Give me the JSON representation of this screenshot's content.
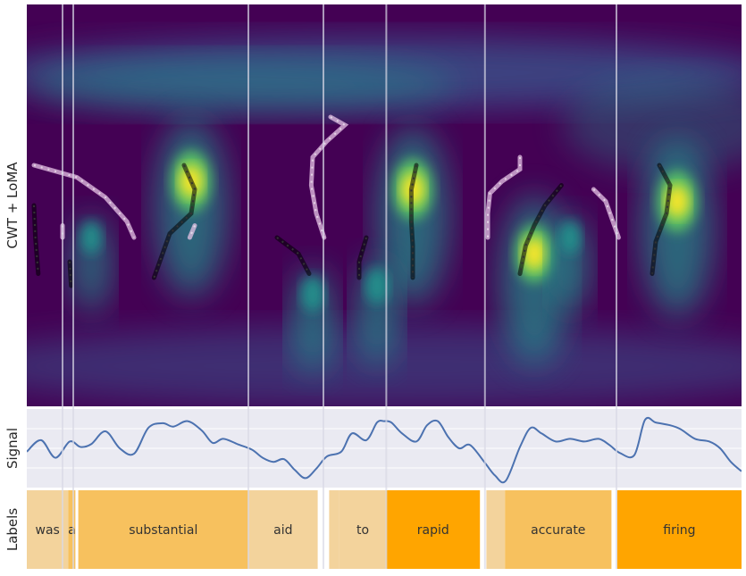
{
  "chart_data": [
    {
      "type": "heatmap",
      "panel": "wavelet",
      "ylabel": "CWT + LoMA",
      "colormap": "viridis",
      "colormap_stops": [
        "#440154",
        "#3b528b",
        "#21918c",
        "#5ec962",
        "#fde725"
      ],
      "grid": false,
      "blobs": [
        {
          "time": 0.23,
          "scale": 0.44,
          "intensity": 1.0
        },
        {
          "time": 0.54,
          "scale": 0.46,
          "intensity": 1.0
        },
        {
          "time": 0.71,
          "scale": 0.62,
          "intensity": 0.95
        },
        {
          "time": 0.91,
          "scale": 0.49,
          "intensity": 1.0
        },
        {
          "time": 0.09,
          "scale": 0.58,
          "intensity": 0.55
        },
        {
          "time": 0.4,
          "scale": 0.72,
          "intensity": 0.6
        },
        {
          "time": 0.49,
          "scale": 0.7,
          "intensity": 0.6
        },
        {
          "time": 0.76,
          "scale": 0.58,
          "intensity": 0.55
        }
      ],
      "ridges_dark": [
        [
          [
            0.01,
            0.5
          ],
          [
            0.012,
            0.58
          ],
          [
            0.016,
            0.67
          ]
        ],
        [
          [
            0.06,
            0.64
          ],
          [
            0.062,
            0.7
          ]
        ],
        [
          [
            0.22,
            0.4
          ],
          [
            0.235,
            0.46
          ],
          [
            0.23,
            0.52
          ],
          [
            0.2,
            0.57
          ],
          [
            0.19,
            0.62
          ],
          [
            0.178,
            0.68
          ]
        ],
        [
          [
            0.35,
            0.58
          ],
          [
            0.38,
            0.62
          ],
          [
            0.395,
            0.67
          ]
        ],
        [
          [
            0.475,
            0.58
          ],
          [
            0.465,
            0.64
          ],
          [
            0.465,
            0.68
          ]
        ],
        [
          [
            0.545,
            0.4
          ],
          [
            0.538,
            0.46
          ],
          [
            0.538,
            0.54
          ],
          [
            0.54,
            0.6
          ],
          [
            0.54,
            0.68
          ]
        ],
        [
          [
            0.748,
            0.45
          ],
          [
            0.725,
            0.5
          ],
          [
            0.71,
            0.55
          ],
          [
            0.698,
            0.6
          ],
          [
            0.69,
            0.67
          ]
        ],
        [
          [
            0.885,
            0.4
          ],
          [
            0.9,
            0.45
          ],
          [
            0.895,
            0.52
          ],
          [
            0.88,
            0.59
          ],
          [
            0.875,
            0.67
          ]
        ]
      ],
      "ridges_light": [
        [
          [
            0.01,
            0.4
          ],
          [
            0.07,
            0.43
          ],
          [
            0.11,
            0.48
          ],
          [
            0.14,
            0.54
          ],
          [
            0.15,
            0.58
          ]
        ],
        [
          [
            0.05,
            0.55
          ],
          [
            0.05,
            0.58
          ]
        ],
        [
          [
            0.235,
            0.55
          ],
          [
            0.228,
            0.58
          ]
        ],
        [
          [
            0.425,
            0.28
          ],
          [
            0.445,
            0.3
          ],
          [
            0.42,
            0.34
          ],
          [
            0.4,
            0.38
          ],
          [
            0.398,
            0.45
          ],
          [
            0.405,
            0.52
          ],
          [
            0.416,
            0.58
          ]
        ],
        [
          [
            0.69,
            0.38
          ],
          [
            0.69,
            0.41
          ],
          [
            0.665,
            0.44
          ],
          [
            0.648,
            0.47
          ],
          [
            0.645,
            0.52
          ],
          [
            0.645,
            0.58
          ]
        ],
        [
          [
            0.793,
            0.46
          ],
          [
            0.81,
            0.49
          ],
          [
            0.82,
            0.54
          ],
          [
            0.828,
            0.58
          ]
        ]
      ]
    },
    {
      "type": "line",
      "panel": "signal",
      "ylabel": "Signal",
      "color": "#4c72b0",
      "background": "#eaeaf2",
      "grid": true,
      "x": [
        0.0,
        0.02,
        0.04,
        0.06,
        0.075,
        0.09,
        0.11,
        0.13,
        0.15,
        0.17,
        0.19,
        0.205,
        0.225,
        0.245,
        0.26,
        0.275,
        0.295,
        0.315,
        0.33,
        0.345,
        0.36,
        0.375,
        0.39,
        0.405,
        0.42,
        0.44,
        0.455,
        0.475,
        0.49,
        0.5,
        0.51,
        0.525,
        0.545,
        0.56,
        0.575,
        0.59,
        0.605,
        0.62,
        0.64,
        0.655,
        0.67,
        0.69,
        0.705,
        0.72,
        0.74,
        0.76,
        0.78,
        0.8,
        0.815,
        0.83,
        0.85,
        0.865,
        0.88,
        0.9,
        0.915,
        0.935,
        0.955,
        0.97,
        0.985,
        1.0
      ],
      "values": [
        0.45,
        0.62,
        0.36,
        0.6,
        0.52,
        0.56,
        0.75,
        0.5,
        0.42,
        0.8,
        0.87,
        0.82,
        0.9,
        0.76,
        0.58,
        0.64,
        0.56,
        0.48,
        0.36,
        0.3,
        0.34,
        0.18,
        0.06,
        0.2,
        0.38,
        0.45,
        0.72,
        0.62,
        0.88,
        0.9,
        0.88,
        0.72,
        0.6,
        0.84,
        0.9,
        0.66,
        0.5,
        0.55,
        0.3,
        0.1,
        0.02,
        0.52,
        0.8,
        0.72,
        0.6,
        0.64,
        0.6,
        0.64,
        0.55,
        0.43,
        0.4,
        0.92,
        0.88,
        0.84,
        0.78,
        0.64,
        0.6,
        0.5,
        0.3,
        0.16
      ],
      "vertical_lines": [
        0.05,
        0.065,
        0.31,
        0.415,
        0.503,
        0.641,
        0.825
      ]
    },
    {
      "type": "table",
      "panel": "labels",
      "ylabel": "Labels",
      "colors": {
        "low": "#f3d39c",
        "mid": "#f7c15e",
        "high": "#ffa500"
      },
      "segments": [
        {
          "word": "was",
          "start": 0.0,
          "end": 0.058,
          "level": "low"
        },
        {
          "word": "a",
          "start": 0.058,
          "end": 0.068,
          "level": "mid"
        },
        {
          "word": "substantial",
          "start": 0.072,
          "end": 0.31,
          "level": "mid"
        },
        {
          "word": "aid",
          "start": 0.31,
          "end": 0.407,
          "level": "low"
        },
        {
          "word": "",
          "start": 0.423,
          "end": 0.437,
          "level": "low"
        },
        {
          "word": "to",
          "start": 0.437,
          "end": 0.503,
          "level": "low"
        },
        {
          "word": "rapid",
          "start": 0.503,
          "end": 0.634,
          "level": "high"
        },
        {
          "word": "",
          "start": 0.643,
          "end": 0.669,
          "level": "low"
        },
        {
          "word": "accurate",
          "start": 0.669,
          "end": 0.818,
          "level": "mid"
        },
        {
          "word": "firing",
          "start": 0.826,
          "end": 1.0,
          "level": "high"
        }
      ]
    }
  ]
}
